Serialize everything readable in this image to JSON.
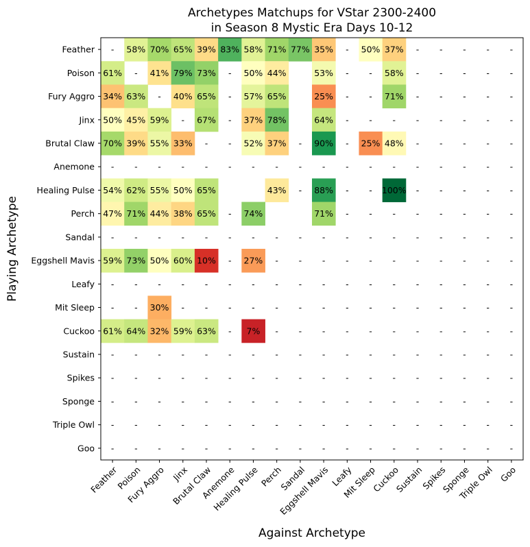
{
  "chart_data": {
    "type": "heatmap",
    "title_line1": "Archetypes Matchups for VStar 2300-2400",
    "title_line2": "in Season 8 Mystic Era Days 10-12",
    "xlabel": "Against Archetype",
    "ylabel": "Playing Archetype",
    "missing_label": "-",
    "value_suffix": "%",
    "colormap": "RdYlGn",
    "value_range": [
      0,
      100
    ],
    "archetypes": [
      "Feather",
      "Poison",
      "Fury Aggro",
      "Jinx",
      "Brutal Claw",
      "Anemone",
      "Healing Pulse",
      "Perch",
      "Sandal",
      "Eggshell Mavis",
      "Leafy",
      "Mit Sleep",
      "Cuckoo",
      "Sustain",
      "Spikes",
      "Sponge",
      "Triple Owl",
      "Goo"
    ],
    "matrix": [
      [
        null,
        58,
        70,
        65,
        39,
        83,
        58,
        71,
        77,
        35,
        null,
        50,
        37,
        null,
        null,
        null,
        null,
        null
      ],
      [
        61,
        null,
        41,
        79,
        73,
        null,
        50,
        44,
        null,
        53,
        null,
        null,
        58,
        null,
        null,
        null,
        null,
        null
      ],
      [
        34,
        63,
        null,
        40,
        65,
        null,
        57,
        65,
        null,
        25,
        null,
        null,
        71,
        null,
        null,
        null,
        null,
        null
      ],
      [
        50,
        45,
        59,
        null,
        67,
        null,
        37,
        78,
        null,
        64,
        null,
        null,
        null,
        null,
        null,
        null,
        null,
        null
      ],
      [
        70,
        39,
        55,
        33,
        null,
        null,
        52,
        37,
        null,
        90,
        null,
        25,
        48,
        null,
        null,
        null,
        null,
        null
      ],
      [
        null,
        null,
        null,
        null,
        null,
        null,
        null,
        null,
        null,
        null,
        null,
        null,
        null,
        null,
        null,
        null,
        null,
        null
      ],
      [
        54,
        62,
        55,
        50,
        65,
        null,
        null,
        43,
        null,
        88,
        null,
        null,
        100,
        null,
        null,
        null,
        null,
        null
      ],
      [
        47,
        71,
        44,
        38,
        65,
        null,
        74,
        null,
        null,
        71,
        null,
        null,
        null,
        null,
        null,
        null,
        null,
        null
      ],
      [
        null,
        null,
        null,
        null,
        null,
        null,
        null,
        null,
        null,
        null,
        null,
        null,
        null,
        null,
        null,
        null,
        null,
        null
      ],
      [
        59,
        73,
        50,
        60,
        10,
        null,
        27,
        null,
        null,
        null,
        null,
        null,
        null,
        null,
        null,
        null,
        null,
        null
      ],
      [
        null,
        null,
        null,
        null,
        null,
        null,
        null,
        null,
        null,
        null,
        null,
        null,
        null,
        null,
        null,
        null,
        null,
        null
      ],
      [
        null,
        null,
        30,
        null,
        null,
        null,
        null,
        null,
        null,
        null,
        null,
        null,
        null,
        null,
        null,
        null,
        null,
        null
      ],
      [
        61,
        64,
        32,
        59,
        63,
        null,
        7,
        null,
        null,
        null,
        null,
        null,
        null,
        null,
        null,
        null,
        null,
        null
      ],
      [
        null,
        null,
        null,
        null,
        null,
        null,
        null,
        null,
        null,
        null,
        null,
        null,
        null,
        null,
        null,
        null,
        null,
        null
      ],
      [
        null,
        null,
        null,
        null,
        null,
        null,
        null,
        null,
        null,
        null,
        null,
        null,
        null,
        null,
        null,
        null,
        null,
        null
      ],
      [
        null,
        null,
        null,
        null,
        null,
        null,
        null,
        null,
        null,
        null,
        null,
        null,
        null,
        null,
        null,
        null,
        null,
        null
      ],
      [
        null,
        null,
        null,
        null,
        null,
        null,
        null,
        null,
        null,
        null,
        null,
        null,
        null,
        null,
        null,
        null,
        null,
        null
      ],
      [
        null,
        null,
        null,
        null,
        null,
        null,
        null,
        null,
        null,
        null,
        null,
        null,
        null,
        null,
        null,
        null,
        null,
        null
      ]
    ],
    "blank_cells": [
      [
        1,
        8
      ],
      [
        2,
        8
      ],
      [
        3,
        8
      ],
      [
        6,
        5
      ],
      [
        6,
        6
      ],
      [
        7,
        7
      ],
      [
        7,
        8
      ]
    ]
  }
}
